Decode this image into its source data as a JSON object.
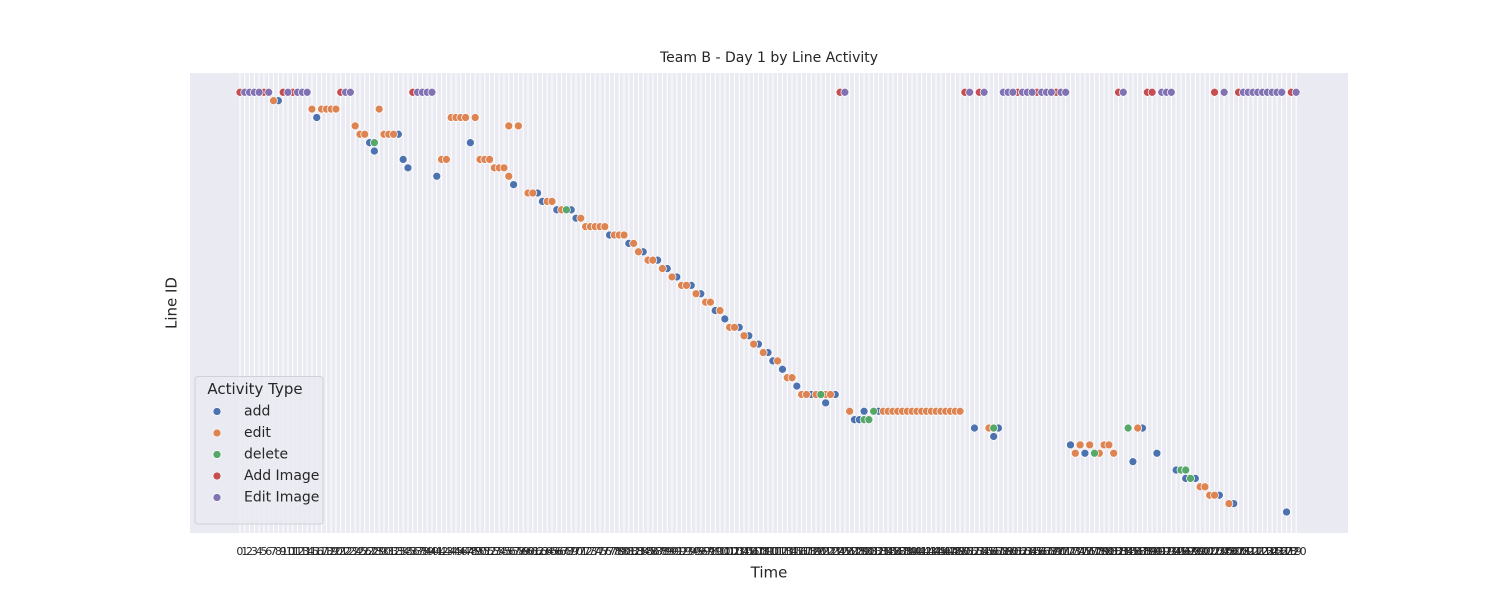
{
  "chart_data": {
    "type": "scatter",
    "title": "Team B - Day 1 by Line Activity",
    "x_label": "Time",
    "y_label": "Line ID",
    "legend_title": "Activity Type",
    "legend_position": "lower left",
    "grid": true,
    "y_inverted": true,
    "background": "#eaeaf2",
    "xlim": [
      -10.4,
      230.8
    ],
    "ylim": [
      -2.3,
      52.5
    ],
    "xticks": [
      0,
      1,
      2,
      3,
      4,
      5,
      6,
      7,
      8,
      9,
      10,
      11,
      12,
      13,
      14,
      15,
      16,
      17,
      18,
      19,
      20,
      21,
      22,
      23,
      24,
      25,
      26,
      27,
      28,
      29,
      30,
      31,
      32,
      33,
      34,
      35,
      36,
      37,
      38,
      39,
      40,
      41,
      42,
      43,
      44,
      45,
      46,
      47,
      48,
      49,
      50,
      51,
      52,
      53,
      54,
      55,
      56,
      57,
      58,
      59,
      60,
      61,
      62,
      63,
      64,
      65,
      66,
      67,
      68,
      69,
      70,
      71,
      72,
      73,
      74,
      75,
      76,
      77,
      78,
      79,
      80,
      81,
      82,
      83,
      84,
      85,
      86,
      87,
      88,
      89,
      90,
      91,
      92,
      93,
      94,
      95,
      96,
      97,
      98,
      99,
      100,
      101,
      102,
      103,
      104,
      105,
      106,
      107,
      108,
      109,
      110,
      111,
      112,
      113,
      114,
      115,
      116,
      117,
      118,
      119,
      120,
      121,
      122,
      123,
      124,
      125,
      126,
      127,
      128,
      129,
      130,
      131,
      132,
      133,
      134,
      135,
      136,
      137,
      138,
      139,
      140,
      141,
      142,
      143,
      144,
      145,
      146,
      147,
      148,
      149,
      150,
      151,
      152,
      153,
      154,
      155,
      156,
      157,
      158,
      159,
      160,
      161,
      162,
      163,
      164,
      165,
      166,
      167,
      168,
      169,
      170,
      171,
      172,
      173,
      174,
      175,
      176,
      177,
      178,
      179,
      180,
      181,
      182,
      183,
      184,
      185,
      186,
      187,
      188,
      189,
      190,
      191,
      192,
      193,
      194,
      195,
      196,
      197,
      198,
      199,
      200,
      201,
      202,
      203,
      204,
      205,
      206,
      207,
      208,
      209,
      210,
      211,
      212,
      213,
      214,
      215,
      216,
      217,
      218,
      219,
      220
    ],
    "series": [
      {
        "name": "add",
        "color": "#4c72b0",
        "x": [
          8,
          16,
          33,
          27,
          48,
          28,
          34,
          35,
          41,
          57,
          62,
          63,
          66,
          69,
          70,
          77,
          81,
          84,
          87,
          89,
          91,
          94,
          96,
          99,
          101,
          104,
          106,
          108,
          110,
          111,
          113,
          116,
          119,
          124,
          122,
          130,
          133,
          128,
          129,
          153,
          158,
          188,
          157,
          173,
          176,
          191,
          186,
          195,
          197,
          199,
          204,
          207,
          218
        ],
        "y": [
          1,
          3,
          5,
          6,
          6,
          7,
          8,
          9,
          10,
          11,
          12,
          13,
          14,
          14,
          15,
          17,
          18,
          19,
          20,
          21,
          22,
          23,
          24,
          26,
          27,
          28,
          29,
          30,
          31,
          32,
          33,
          35,
          36,
          36,
          37,
          38,
          38,
          39,
          39,
          40,
          40,
          40,
          41,
          42,
          43,
          43,
          44,
          45,
          46,
          46,
          48,
          49,
          50
        ]
      },
      {
        "name": "edit",
        "color": "#dd8452",
        "x": [
          7,
          15,
          17,
          18,
          19,
          20,
          29,
          44,
          45,
          46,
          47,
          49,
          24,
          56,
          58,
          25,
          26,
          30,
          31,
          32,
          42,
          43,
          50,
          51,
          52,
          53,
          54,
          55,
          56,
          60,
          61,
          64,
          65,
          67,
          71,
          72,
          73,
          74,
          75,
          76,
          78,
          79,
          80,
          82,
          83,
          85,
          86,
          88,
          90,
          92,
          93,
          95,
          97,
          98,
          100,
          102,
          103,
          105,
          107,
          109,
          112,
          114,
          115,
          117,
          118,
          120,
          122,
          123,
          127,
          134,
          135,
          136,
          137,
          138,
          139,
          140,
          141,
          142,
          143,
          144,
          145,
          146,
          147,
          148,
          149,
          150,
          156,
          187,
          175,
          177,
          180,
          181,
          174,
          179,
          182,
          200,
          201,
          202,
          203,
          206
        ],
        "y": [
          1,
          2,
          2,
          2,
          2,
          2,
          2,
          3,
          3,
          3,
          3,
          3,
          4,
          4,
          4,
          5,
          5,
          5,
          5,
          5,
          8,
          8,
          8,
          8,
          8,
          9,
          9,
          9,
          10,
          12,
          12,
          13,
          13,
          14,
          15,
          16,
          16,
          16,
          16,
          16,
          17,
          17,
          17,
          18,
          19,
          20,
          20,
          21,
          22,
          23,
          23,
          24,
          25,
          25,
          26,
          28,
          28,
          29,
          30,
          31,
          32,
          34,
          34,
          36,
          36,
          36,
          36,
          36,
          38,
          38,
          38,
          38,
          38,
          38,
          38,
          38,
          38,
          38,
          38,
          38,
          38,
          38,
          38,
          38,
          38,
          38,
          40,
          40,
          42,
          42,
          42,
          42,
          43,
          43,
          43,
          47,
          47,
          48,
          48,
          49
        ]
      },
      {
        "name": "delete",
        "color": "#55a868",
        "x": [
          28,
          68,
          121,
          132,
          130,
          131,
          157,
          185,
          178,
          196,
          197,
          198
        ],
        "y": [
          6,
          14,
          36,
          38,
          39,
          39,
          40,
          40,
          43,
          45,
          45,
          46
        ]
      },
      {
        "name": "Add Image",
        "color": "#c44e52",
        "x": [
          0,
          5,
          9,
          11,
          21,
          36,
          125,
          151,
          154,
          162,
          166,
          170,
          183,
          189,
          190,
          203,
          208,
          219
        ],
        "y": [
          0,
          0,
          0,
          0,
          0,
          0,
          0,
          0,
          0,
          0,
          0,
          0,
          0,
          0,
          0,
          0,
          0,
          0
        ]
      },
      {
        "name": "Edit Image",
        "color": "#8172b3",
        "x": [
          1,
          2,
          3,
          4,
          6,
          10,
          12,
          13,
          14,
          22,
          23,
          37,
          38,
          39,
          40,
          126,
          152,
          155,
          159,
          160,
          161,
          163,
          164,
          165,
          167,
          168,
          169,
          171,
          172,
          184,
          192,
          193,
          194,
          205,
          209,
          210,
          211,
          212,
          213,
          214,
          215,
          216,
          217,
          220
        ],
        "y": [
          0,
          0,
          0,
          0,
          0,
          0,
          0,
          0,
          0,
          0,
          0,
          0,
          0,
          0,
          0,
          0,
          0,
          0,
          0,
          0,
          0,
          0,
          0,
          0,
          0,
          0,
          0,
          0,
          0,
          0,
          0,
          0,
          0,
          0,
          0,
          0,
          0,
          0,
          0,
          0,
          0,
          0,
          0,
          0
        ]
      }
    ]
  }
}
